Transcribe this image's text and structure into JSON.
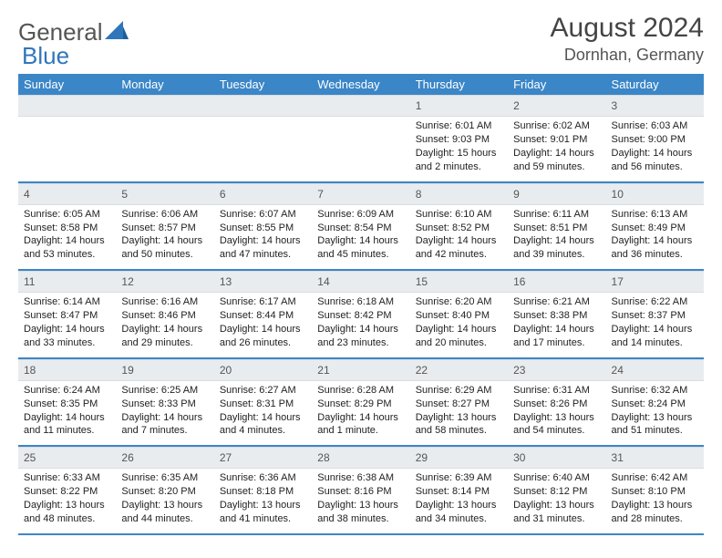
{
  "logo": {
    "text1": "General",
    "text2": "Blue"
  },
  "title": "August 2024",
  "location": "Dornhan, Germany",
  "colors": {
    "header_bg": "#3b86c7",
    "header_fg": "#ffffff",
    "daynum_bg": "#e9ecef",
    "row_border": "#3b86c7"
  },
  "weekdays": [
    "Sunday",
    "Monday",
    "Tuesday",
    "Wednesday",
    "Thursday",
    "Friday",
    "Saturday"
  ],
  "weeks": [
    [
      null,
      null,
      null,
      null,
      {
        "n": "1",
        "sr": "6:01 AM",
        "ss": "9:03 PM",
        "dl": "15 hours and 2 minutes."
      },
      {
        "n": "2",
        "sr": "6:02 AM",
        "ss": "9:01 PM",
        "dl": "14 hours and 59 minutes."
      },
      {
        "n": "3",
        "sr": "6:03 AM",
        "ss": "9:00 PM",
        "dl": "14 hours and 56 minutes."
      }
    ],
    [
      {
        "n": "4",
        "sr": "6:05 AM",
        "ss": "8:58 PM",
        "dl": "14 hours and 53 minutes."
      },
      {
        "n": "5",
        "sr": "6:06 AM",
        "ss": "8:57 PM",
        "dl": "14 hours and 50 minutes."
      },
      {
        "n": "6",
        "sr": "6:07 AM",
        "ss": "8:55 PM",
        "dl": "14 hours and 47 minutes."
      },
      {
        "n": "7",
        "sr": "6:09 AM",
        "ss": "8:54 PM",
        "dl": "14 hours and 45 minutes."
      },
      {
        "n": "8",
        "sr": "6:10 AM",
        "ss": "8:52 PM",
        "dl": "14 hours and 42 minutes."
      },
      {
        "n": "9",
        "sr": "6:11 AM",
        "ss": "8:51 PM",
        "dl": "14 hours and 39 minutes."
      },
      {
        "n": "10",
        "sr": "6:13 AM",
        "ss": "8:49 PM",
        "dl": "14 hours and 36 minutes."
      }
    ],
    [
      {
        "n": "11",
        "sr": "6:14 AM",
        "ss": "8:47 PM",
        "dl": "14 hours and 33 minutes."
      },
      {
        "n": "12",
        "sr": "6:16 AM",
        "ss": "8:46 PM",
        "dl": "14 hours and 29 minutes."
      },
      {
        "n": "13",
        "sr": "6:17 AM",
        "ss": "8:44 PM",
        "dl": "14 hours and 26 minutes."
      },
      {
        "n": "14",
        "sr": "6:18 AM",
        "ss": "8:42 PM",
        "dl": "14 hours and 23 minutes."
      },
      {
        "n": "15",
        "sr": "6:20 AM",
        "ss": "8:40 PM",
        "dl": "14 hours and 20 minutes."
      },
      {
        "n": "16",
        "sr": "6:21 AM",
        "ss": "8:38 PM",
        "dl": "14 hours and 17 minutes."
      },
      {
        "n": "17",
        "sr": "6:22 AM",
        "ss": "8:37 PM",
        "dl": "14 hours and 14 minutes."
      }
    ],
    [
      {
        "n": "18",
        "sr": "6:24 AM",
        "ss": "8:35 PM",
        "dl": "14 hours and 11 minutes."
      },
      {
        "n": "19",
        "sr": "6:25 AM",
        "ss": "8:33 PM",
        "dl": "14 hours and 7 minutes."
      },
      {
        "n": "20",
        "sr": "6:27 AM",
        "ss": "8:31 PM",
        "dl": "14 hours and 4 minutes."
      },
      {
        "n": "21",
        "sr": "6:28 AM",
        "ss": "8:29 PM",
        "dl": "14 hours and 1 minute."
      },
      {
        "n": "22",
        "sr": "6:29 AM",
        "ss": "8:27 PM",
        "dl": "13 hours and 58 minutes."
      },
      {
        "n": "23",
        "sr": "6:31 AM",
        "ss": "8:26 PM",
        "dl": "13 hours and 54 minutes."
      },
      {
        "n": "24",
        "sr": "6:32 AM",
        "ss": "8:24 PM",
        "dl": "13 hours and 51 minutes."
      }
    ],
    [
      {
        "n": "25",
        "sr": "6:33 AM",
        "ss": "8:22 PM",
        "dl": "13 hours and 48 minutes."
      },
      {
        "n": "26",
        "sr": "6:35 AM",
        "ss": "8:20 PM",
        "dl": "13 hours and 44 minutes."
      },
      {
        "n": "27",
        "sr": "6:36 AM",
        "ss": "8:18 PM",
        "dl": "13 hours and 41 minutes."
      },
      {
        "n": "28",
        "sr": "6:38 AM",
        "ss": "8:16 PM",
        "dl": "13 hours and 38 minutes."
      },
      {
        "n": "29",
        "sr": "6:39 AM",
        "ss": "8:14 PM",
        "dl": "13 hours and 34 minutes."
      },
      {
        "n": "30",
        "sr": "6:40 AM",
        "ss": "8:12 PM",
        "dl": "13 hours and 31 minutes."
      },
      {
        "n": "31",
        "sr": "6:42 AM",
        "ss": "8:10 PM",
        "dl": "13 hours and 28 minutes."
      }
    ]
  ],
  "labels": {
    "sunrise": "Sunrise:",
    "sunset": "Sunset:",
    "daylight": "Daylight:"
  }
}
